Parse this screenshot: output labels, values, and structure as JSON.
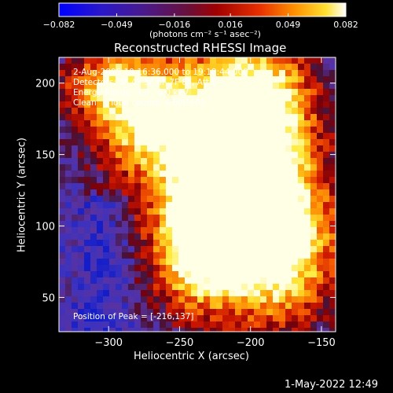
{
  "colorbar": {
    "tick_labels": [
      "-0.082",
      "-0.049",
      "-0.016",
      "0.016",
      "0.049",
      "0.082"
    ],
    "units_label": "(photons cm⁻² s⁻¹ asec⁻²)",
    "range": [
      -0.082,
      0.082
    ]
  },
  "footer": {
    "date_stamp": "1-May-2022 12:49"
  },
  "chart_data": {
    "type": "heatmap",
    "title": "Reconstructed RHESSI Image",
    "xlabel": "Heliocentric X (arcsec)",
    "ylabel": "Heliocentric Y (arcsec)",
    "xlim": [
      -335,
      -140
    ],
    "ylim": [
      26,
      218
    ],
    "x_ticks": [
      -300,
      -250,
      -200,
      -150
    ],
    "y_ticks": [
      50,
      100,
      150,
      200
    ],
    "annotations": [
      "2-Aug-2005 19:16:36.000 to 19:18:44.000",
      "Detectors: 3F 4F 5F 6F 7F 8F, Att 0",
      "Energy Range: 3.0 - 6.0 keV",
      "Clean     Total counts: 4.60E+03"
    ],
    "peak_label": "Position of Peak = [-216,137]",
    "peak": {
      "x": -216,
      "y": 137
    },
    "colormap": "rainbow-hot (blue → purple → red → orange → yellow → white)",
    "grid": false
  }
}
